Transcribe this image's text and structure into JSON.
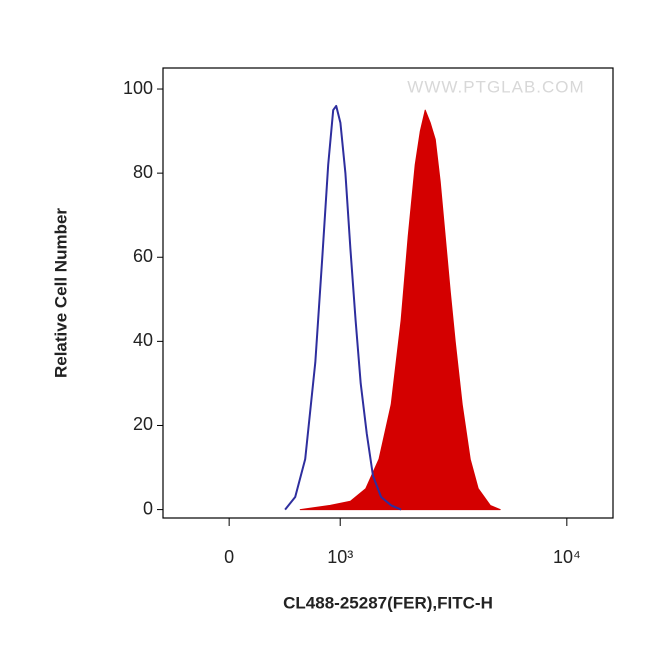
{
  "chart_data": {
    "type": "histogram-overlay",
    "x_label": "CL488-25287(FER),FITC-H",
    "y_label": "Relative Cell Number",
    "watermark": "WWW.PTGLAB.COM",
    "x_scale": "asinh",
    "xlim": [
      -530,
      15600
    ],
    "xticks": [
      {
        "value": 0,
        "label": "0"
      },
      {
        "value": 1000,
        "label": "10³"
      },
      {
        "value": 10000,
        "label": "10⁴"
      }
    ],
    "ylim": [
      -2,
      105
    ],
    "yticks": [
      0,
      20,
      40,
      60,
      80,
      100
    ],
    "series": [
      {
        "color": "#d40000",
        "fill": true,
        "x": [
          575,
          882,
          1129,
          1346,
          1555,
          1770,
          1962,
          2111,
          2266,
          2386,
          2509,
          2638,
          2774,
          2915,
          3063,
          3219,
          3382,
          3622,
          3918,
          4239,
          4766,
          5251
        ],
        "values": [
          0,
          1,
          2,
          5,
          12,
          25,
          45,
          65,
          82,
          90,
          95,
          92,
          88,
          78,
          65,
          52,
          40,
          25,
          12,
          5,
          1,
          0
        ]
      },
      {
        "color": "#2e2e9e",
        "fill": false,
        "x": [
          440,
          529,
          622,
          722,
          795,
          860,
          917,
          952,
          1002,
          1064,
          1129,
          1199,
          1271,
          1361,
          1456,
          1590,
          1770,
          1962
        ],
        "values": [
          0,
          3,
          12,
          35,
          60,
          82,
          95,
          96,
          92,
          80,
          62,
          45,
          30,
          18,
          8,
          3,
          1,
          0
        ]
      }
    ]
  }
}
